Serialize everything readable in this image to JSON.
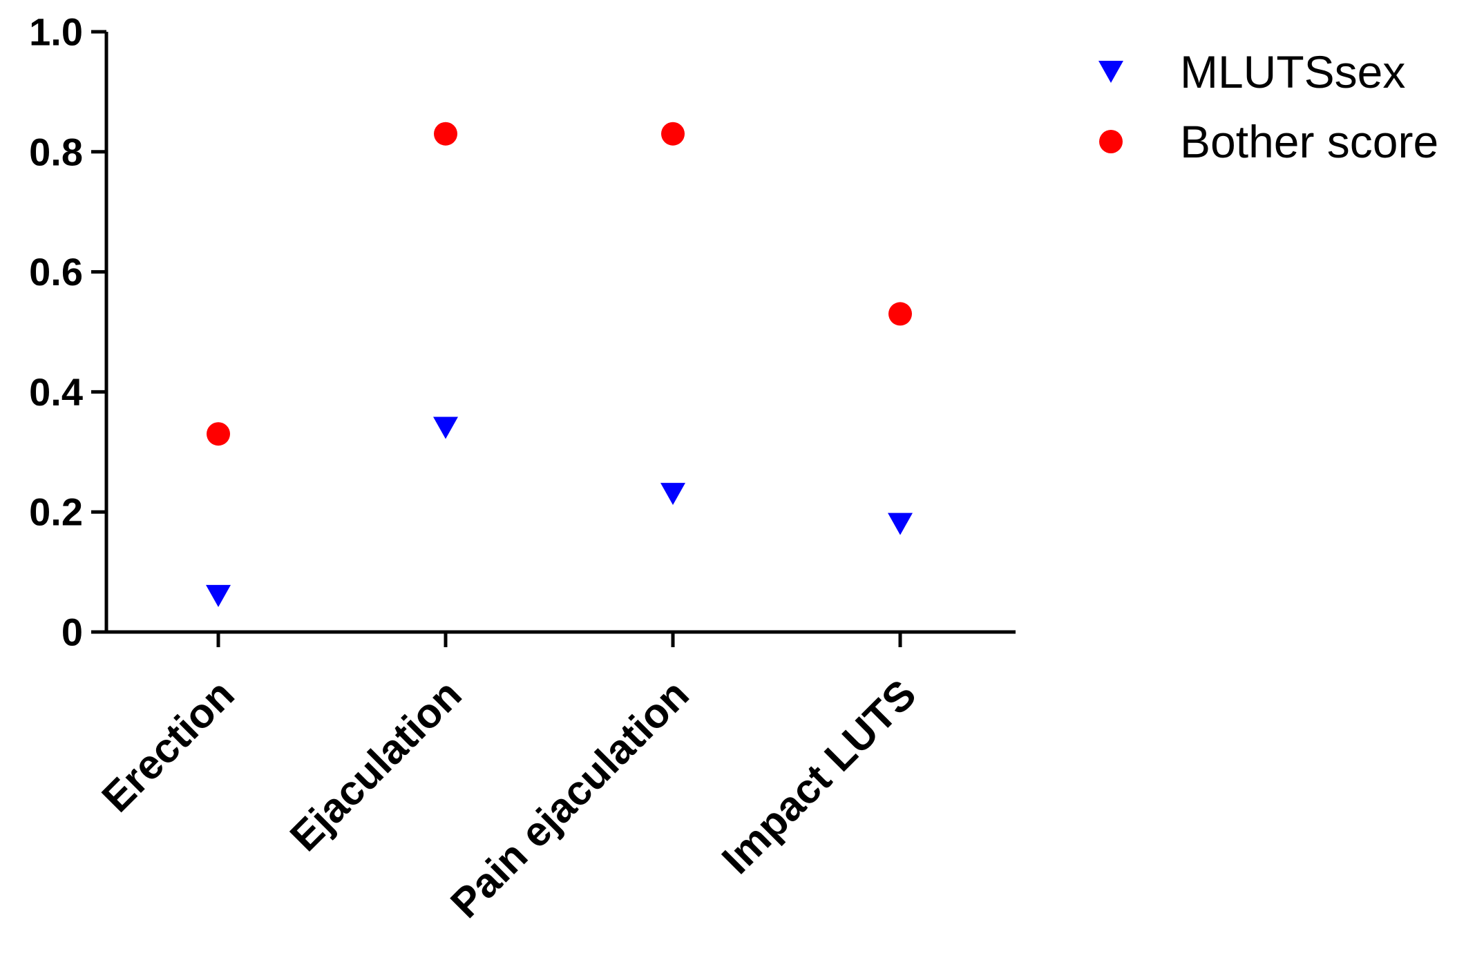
{
  "chart_data": {
    "type": "scatter",
    "categories": [
      "Erection",
      "Ejaculation",
      "Pain ejaculation",
      "Impact LUTS"
    ],
    "series": [
      {
        "name": "MLUTSsex",
        "marker": "triangle-down",
        "color": "#0000ff",
        "values": [
          0.06,
          0.34,
          0.23,
          0.18
        ]
      },
      {
        "name": "Bother score",
        "marker": "circle",
        "color": "#ff0000",
        "values": [
          0.33,
          0.83,
          0.83,
          0.53
        ]
      }
    ],
    "ylim": [
      0,
      1.0
    ],
    "yticks": [
      "0",
      "0.2",
      "0.4",
      "0.6",
      "0.8",
      "1.0"
    ],
    "ytick_values": [
      0,
      0.2,
      0.4,
      0.6,
      0.8,
      1.0
    ],
    "title": "",
    "xlabel": "",
    "ylabel": "",
    "grid": false,
    "legend_position": "top-right"
  }
}
